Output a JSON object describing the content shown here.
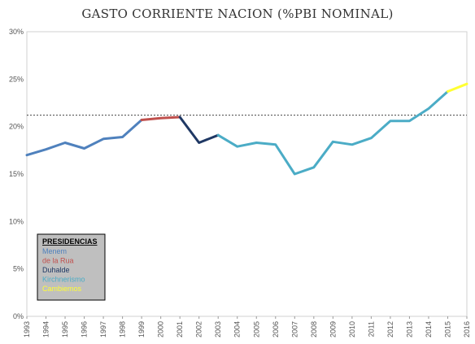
{
  "chart_data": {
    "type": "line",
    "title": "GASTO CORRIENTE NACION (%PBI NOMINAL)",
    "x": [
      "1993",
      "1994",
      "1995",
      "1996",
      "1997",
      "1998",
      "1999",
      "2000",
      "2001",
      "2002",
      "2003",
      "2004",
      "2005",
      "2006",
      "2007",
      "2008",
      "2009",
      "2010",
      "2011",
      "2012",
      "2013",
      "2014",
      "2015",
      "2016"
    ],
    "values": [
      17.0,
      17.6,
      18.3,
      17.7,
      18.7,
      18.9,
      20.7,
      20.9,
      21.0,
      18.3,
      19.1,
      17.9,
      18.3,
      18.1,
      15.0,
      15.7,
      18.4,
      18.1,
      18.8,
      20.6,
      20.6,
      21.9,
      23.7,
      24.5
    ],
    "series": [
      {
        "name": "Menem",
        "color": "#4f81bd",
        "from_index": 0,
        "to_index": 6
      },
      {
        "name": "de la Rua",
        "color": "#c0504d",
        "from_index": 6,
        "to_index": 8
      },
      {
        "name": "Duhalde",
        "color": "#1f3864",
        "from_index": 8,
        "to_index": 10
      },
      {
        "name": "Kirchnerismo",
        "color": "#4bacc6",
        "from_index": 10,
        "to_index": 22
      },
      {
        "name": "Cambiemos",
        "color": "#ffff33",
        "from_index": 22,
        "to_index": 23
      }
    ],
    "yticks": [
      "0%",
      "5%",
      "10%",
      "15%",
      "20%",
      "25%",
      "30%"
    ],
    "ylim": [
      0,
      30
    ],
    "reference_line": {
      "value": 21.2,
      "style": "dotted",
      "color": "#444444"
    },
    "legend": {
      "title": "PRESIDENCIAS",
      "placement": "bottom-left",
      "background": "#bfbfbf"
    },
    "grid": false
  }
}
